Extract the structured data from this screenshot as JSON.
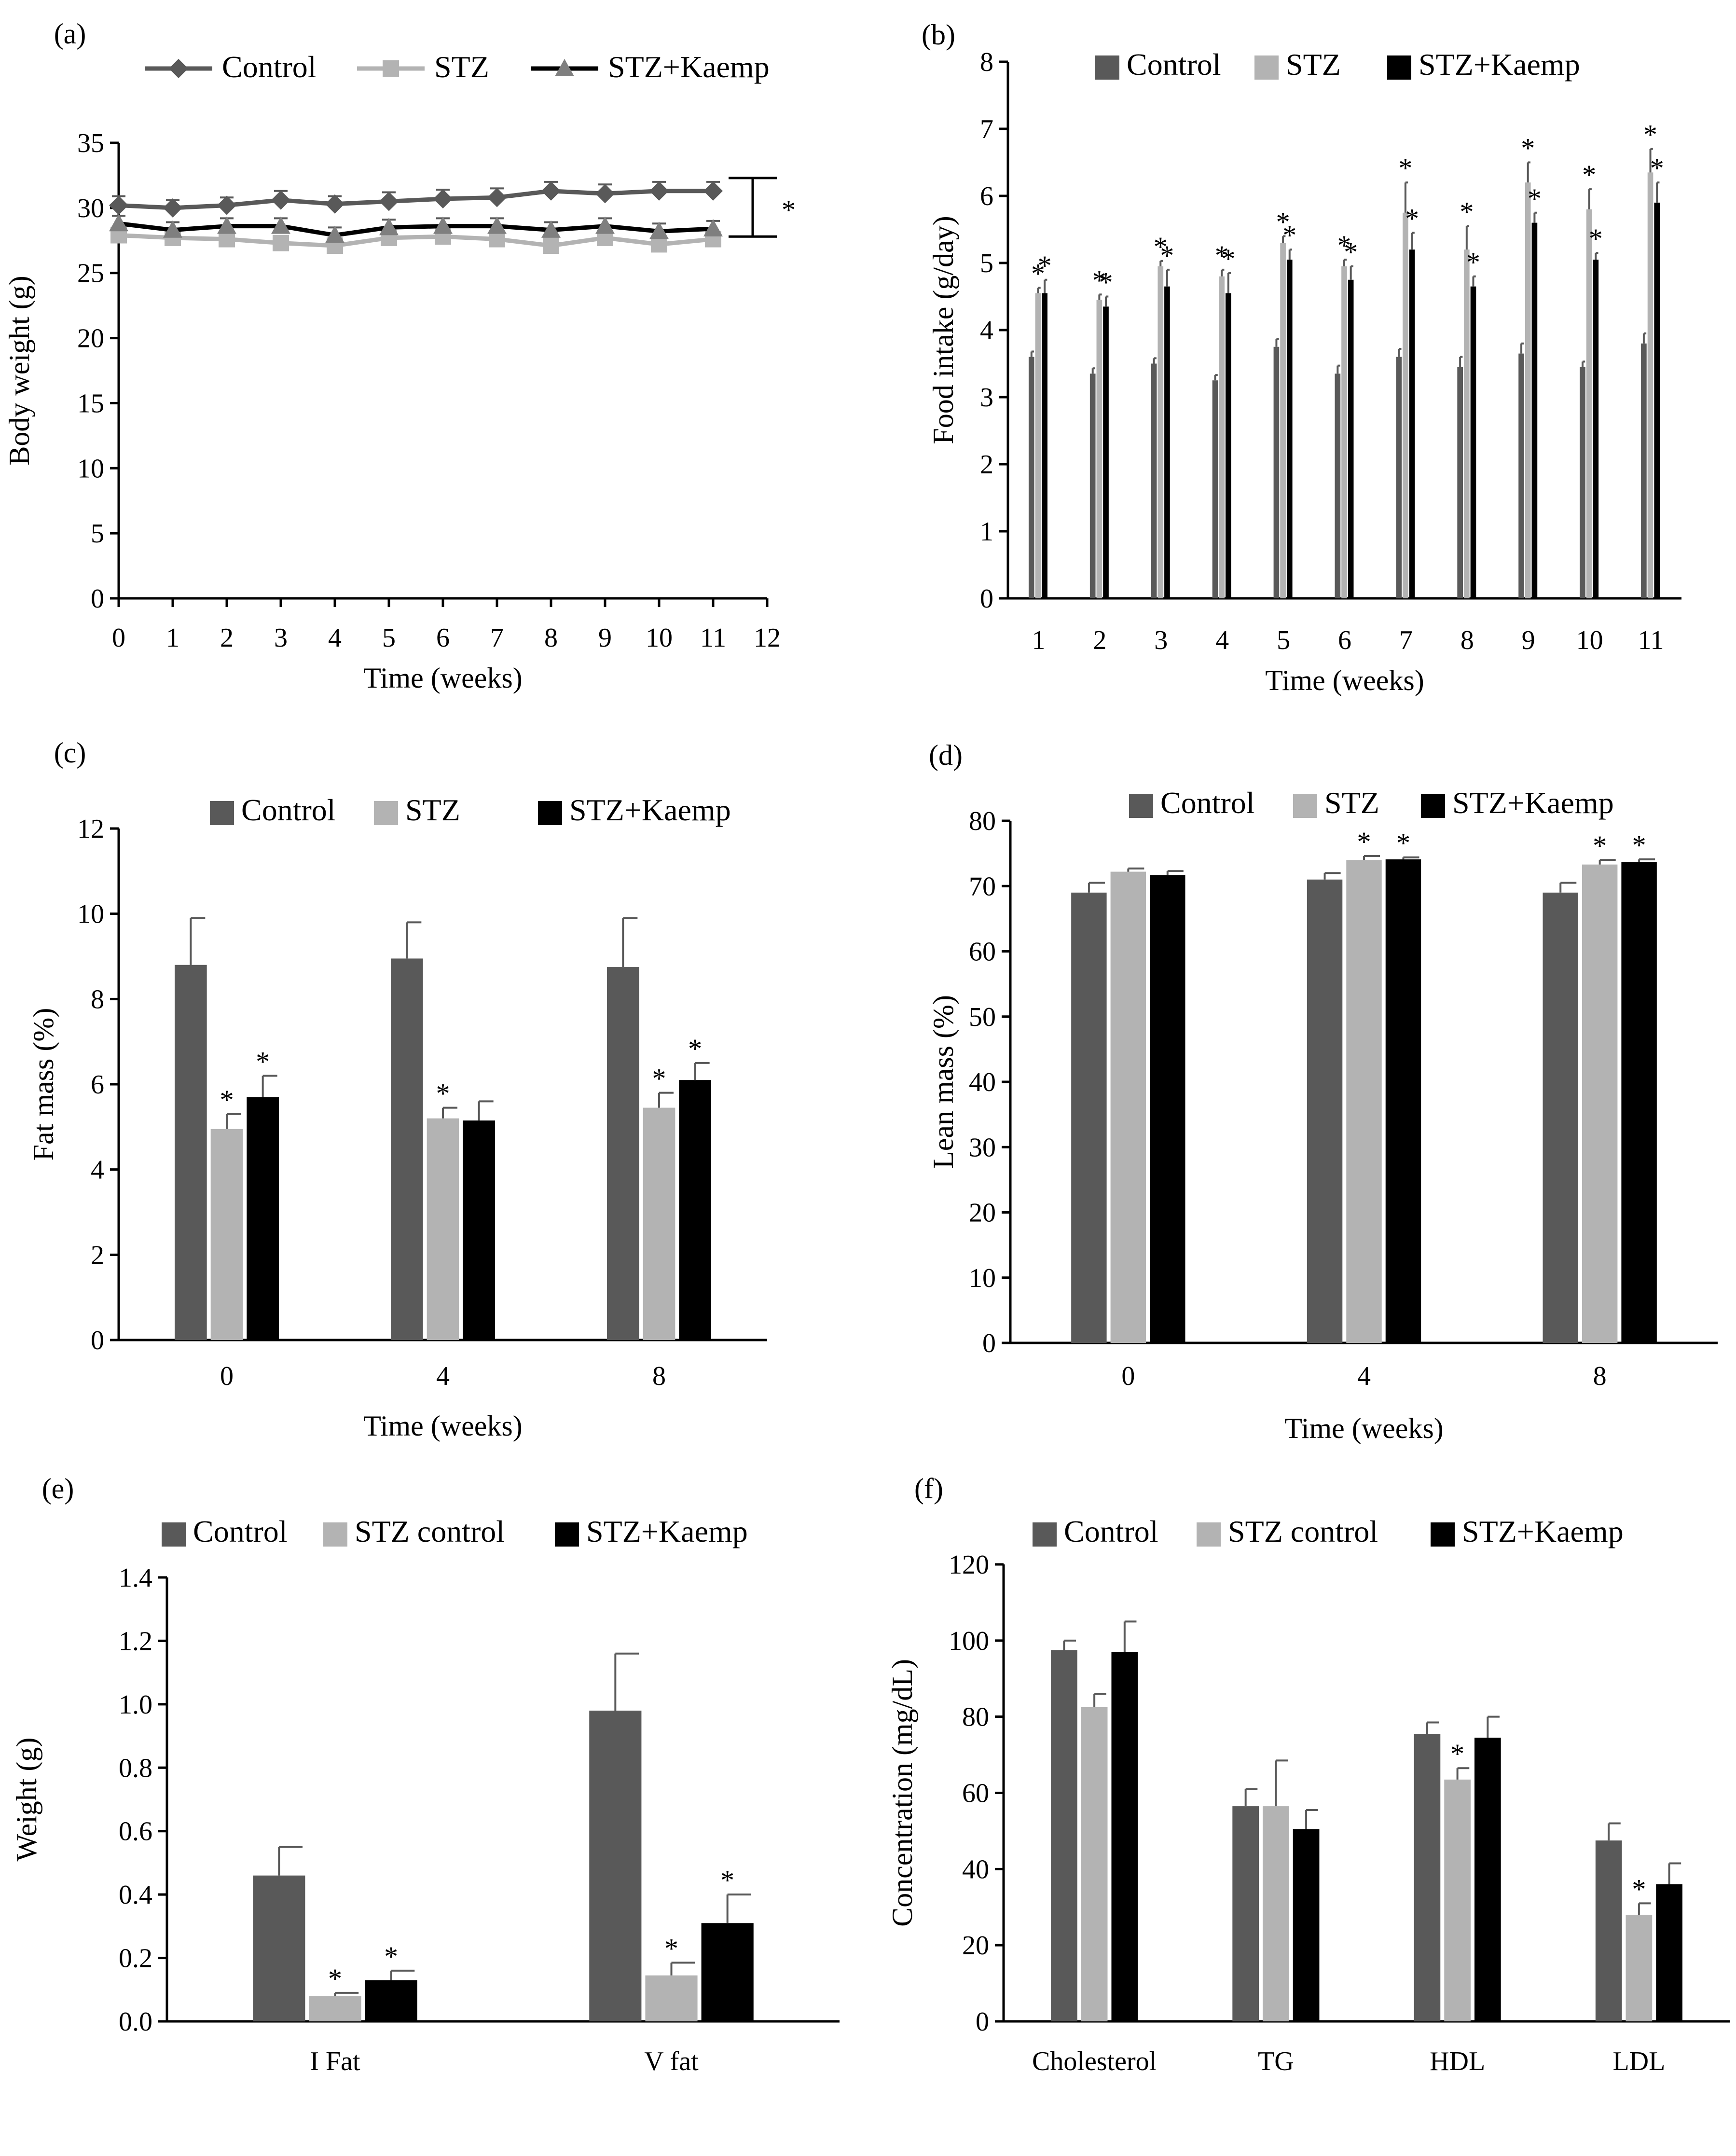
{
  "colors": {
    "control": "#595959",
    "stz": "#b3b3b3",
    "kaemp": "#000000"
  },
  "chart_data": [
    {
      "id": "a",
      "panel_label": "(a)",
      "type": "line",
      "xlabel": "Time (weeks)",
      "ylabel": "Body weight (g)",
      "xlim": [
        0,
        12
      ],
      "ylim": [
        0,
        35
      ],
      "x_ticks": [
        "0",
        "1",
        "2",
        "3",
        "4",
        "5",
        "6",
        "7",
        "8",
        "9",
        "10",
        "11",
        "12"
      ],
      "y_ticks": [
        "0",
        "5",
        "10",
        "15",
        "20",
        "25",
        "30",
        "35"
      ],
      "x": [
        0,
        1,
        2,
        3,
        4,
        5,
        6,
        7,
        8,
        9,
        10,
        11
      ],
      "legend": [
        "Control",
        "STZ",
        "STZ+Kaemp"
      ],
      "series": [
        {
          "name": "Control",
          "marker": "diamond",
          "values": [
            30.2,
            30.0,
            30.2,
            30.6,
            30.3,
            30.5,
            30.7,
            30.8,
            31.3,
            31.1,
            31.3,
            31.3
          ],
          "errors": [
            0.7,
            0.6,
            0.6,
            0.7,
            0.6,
            0.7,
            0.7,
            0.7,
            0.7,
            0.7,
            0.7,
            0.7
          ]
        },
        {
          "name": "STZ",
          "marker": "square",
          "values": [
            27.9,
            27.7,
            27.6,
            27.3,
            27.1,
            27.7,
            27.8,
            27.6,
            27.1,
            27.7,
            27.2,
            27.6
          ],
          "errors": [
            0.5,
            0.5,
            0.5,
            0.5,
            0.5,
            0.5,
            0.5,
            0.5,
            0.5,
            0.5,
            0.5,
            0.5
          ]
        },
        {
          "name": "STZ+Kaemp",
          "marker": "triangle",
          "values": [
            28.8,
            28.3,
            28.6,
            28.6,
            27.9,
            28.5,
            28.6,
            28.6,
            28.3,
            28.6,
            28.2,
            28.4
          ],
          "errors": [
            0.6,
            0.6,
            0.6,
            0.6,
            0.6,
            0.6,
            0.6,
            0.6,
            0.6,
            0.6,
            0.6,
            0.6
          ]
        }
      ],
      "bracket": {
        "from": 27.8,
        "to": 31.3,
        "label": "*"
      }
    },
    {
      "id": "b",
      "panel_label": "(b)",
      "type": "bar",
      "xlabel": "Time (weeks)",
      "ylabel": "Food intake (g/day)",
      "ylim": [
        0,
        8
      ],
      "y_ticks": [
        "0",
        "1",
        "2",
        "3",
        "4",
        "5",
        "6",
        "7",
        "8"
      ],
      "categories": [
        "1",
        "2",
        "3",
        "4",
        "5",
        "6",
        "7",
        "8",
        "9",
        "10",
        "11"
      ],
      "legend": [
        "Control",
        "STZ",
        "STZ+Kaemp"
      ],
      "series": [
        {
          "name": "Control",
          "values": [
            3.6,
            3.35,
            3.5,
            3.25,
            3.75,
            3.35,
            3.6,
            3.45,
            3.65,
            3.45,
            3.8
          ],
          "errors": [
            0.08,
            0.08,
            0.08,
            0.08,
            0.12,
            0.12,
            0.12,
            0.15,
            0.15,
            0.08,
            0.15
          ],
          "stars": [
            "",
            "",
            "",
            "",
            "",
            "",
            "",
            "",
            "",
            "",
            ""
          ]
        },
        {
          "name": "STZ",
          "values": [
            4.55,
            4.45,
            4.95,
            4.8,
            5.3,
            4.95,
            5.75,
            5.2,
            6.2,
            5.8,
            6.35
          ],
          "errors": [
            0.08,
            0.08,
            0.08,
            0.1,
            0.1,
            0.1,
            0.45,
            0.35,
            0.3,
            0.3,
            0.35
          ],
          "stars": [
            "*",
            "*",
            "*",
            "*",
            "*",
            "*",
            "*",
            "*",
            "*",
            "*",
            "*"
          ]
        },
        {
          "name": "STZ+Kaemp",
          "values": [
            4.55,
            4.35,
            4.65,
            4.55,
            5.05,
            4.75,
            5.2,
            4.65,
            5.6,
            5.05,
            5.9
          ],
          "errors": [
            0.2,
            0.15,
            0.25,
            0.3,
            0.15,
            0.2,
            0.25,
            0.15,
            0.15,
            0.1,
            0.3
          ],
          "stars": [
            "*",
            "*",
            "*",
            "*",
            "*",
            "*",
            "*",
            "*",
            "*",
            "*",
            "*"
          ]
        }
      ]
    },
    {
      "id": "c",
      "panel_label": "(c)",
      "type": "bar",
      "xlabel": "Time (weeks)",
      "ylabel": "Fat mass (%)",
      "ylim": [
        0,
        12
      ],
      "y_ticks": [
        "0",
        "2",
        "4",
        "6",
        "8",
        "10",
        "12"
      ],
      "categories": [
        "0",
        "4",
        "8"
      ],
      "legend": [
        "Control",
        "STZ",
        "STZ+Kaemp"
      ],
      "series": [
        {
          "name": "Control",
          "values": [
            8.8,
            8.95,
            8.75
          ],
          "errors": [
            1.1,
            0.85,
            1.15
          ],
          "stars": [
            "",
            "",
            ""
          ]
        },
        {
          "name": "STZ",
          "values": [
            4.95,
            5.2,
            5.45
          ],
          "errors": [
            0.35,
            0.25,
            0.35
          ],
          "stars": [
            "*",
            "*",
            "*"
          ]
        },
        {
          "name": "STZ+Kaemp",
          "values": [
            5.7,
            5.15,
            6.1
          ],
          "errors": [
            0.5,
            0.45,
            0.4
          ],
          "stars": [
            "*",
            "",
            "*"
          ]
        }
      ]
    },
    {
      "id": "d",
      "panel_label": "(d)",
      "type": "bar",
      "xlabel": "Time (weeks)",
      "ylabel": "Lean mass (%)",
      "ylim": [
        0,
        80
      ],
      "y_ticks": [
        "0",
        "10",
        "20",
        "30",
        "40",
        "50",
        "60",
        "70",
        "80"
      ],
      "categories": [
        "0",
        "4",
        "8"
      ],
      "legend": [
        "Control",
        "STZ",
        "STZ+Kaemp"
      ],
      "series": [
        {
          "name": "Control",
          "values": [
            69.0,
            71.0,
            69.0
          ],
          "errors": [
            1.5,
            1.0,
            1.5
          ],
          "stars": [
            "",
            "",
            ""
          ]
        },
        {
          "name": "STZ",
          "values": [
            72.2,
            74.0,
            73.3
          ],
          "errors": [
            0.5,
            0.6,
            0.7
          ],
          "stars": [
            "",
            "*",
            "*"
          ]
        },
        {
          "name": "STZ+Kaemp",
          "values": [
            71.7,
            74.1,
            73.7
          ],
          "errors": [
            0.6,
            0.3,
            0.4
          ],
          "stars": [
            "",
            "*",
            "*"
          ]
        }
      ]
    },
    {
      "id": "e",
      "panel_label": "(e)",
      "type": "bar",
      "xlabel": "",
      "ylabel": "Weight (g)",
      "ylim": [
        0,
        1.4
      ],
      "y_ticks": [
        "0.0",
        "0.2",
        "0.4",
        "0.6",
        "0.8",
        "1.0",
        "1.2",
        "1.4"
      ],
      "categories": [
        "I Fat",
        "V fat"
      ],
      "legend": [
        "Control",
        "STZ control",
        "STZ+Kaemp"
      ],
      "series": [
        {
          "name": "Control",
          "values": [
            0.46,
            0.98
          ],
          "errors": [
            0.09,
            0.18
          ],
          "stars": [
            "",
            ""
          ]
        },
        {
          "name": "STZ control",
          "values": [
            0.08,
            0.145
          ],
          "errors": [
            0.01,
            0.04
          ],
          "stars": [
            "*",
            "*"
          ]
        },
        {
          "name": "STZ+Kaemp",
          "values": [
            0.13,
            0.31
          ],
          "errors": [
            0.03,
            0.09
          ],
          "stars": [
            "*",
            "*"
          ]
        }
      ]
    },
    {
      "id": "f",
      "panel_label": "(f)",
      "type": "bar",
      "xlabel": "",
      "ylabel": "Concentration (mg/dL)",
      "ylim": [
        0,
        120
      ],
      "y_ticks": [
        "0",
        "20",
        "40",
        "60",
        "80",
        "100",
        "120"
      ],
      "categories": [
        "Cholesterol",
        "TG",
        "HDL",
        "LDL"
      ],
      "legend": [
        "Control",
        "STZ control",
        "STZ+Kaemp"
      ],
      "series": [
        {
          "name": "Control",
          "values": [
            97.5,
            56.5,
            75.5,
            47.5
          ],
          "errors": [
            2.5,
            4.5,
            3.0,
            4.5
          ],
          "stars": [
            "",
            "",
            "",
            ""
          ]
        },
        {
          "name": "STZ control",
          "values": [
            82.5,
            56.5,
            63.5,
            28.0
          ],
          "errors": [
            3.5,
            12.0,
            3.0,
            3.0
          ],
          "stars": [
            "",
            "",
            "*",
            "*"
          ]
        },
        {
          "name": "STZ+Kaemp",
          "values": [
            97.0,
            50.5,
            74.5,
            36.0
          ],
          "errors": [
            8.0,
            5.0,
            5.5,
            5.5
          ],
          "stars": [
            "",
            "",
            "",
            ""
          ]
        }
      ]
    }
  ]
}
